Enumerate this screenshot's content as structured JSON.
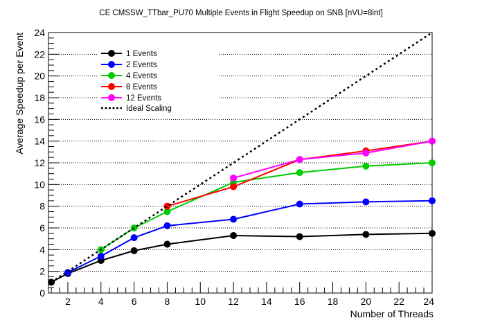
{
  "chart_data": {
    "type": "line",
    "title": "CE CMSSW_TTbar_PU70 Multiple Events in Flight Speedup on SNB [nVU=8int]",
    "xlabel": "Number of Threads",
    "ylabel": "Average Speedup per Event",
    "xlim": [
      0.83,
      24
    ],
    "ylim": [
      0,
      24
    ],
    "x_ticks": [
      2,
      4,
      6,
      8,
      10,
      12,
      14,
      16,
      18,
      20,
      22,
      24
    ],
    "y_ticks": [
      0,
      2,
      4,
      6,
      8,
      10,
      12,
      14,
      16,
      18,
      20,
      22,
      24
    ],
    "grid": "horizontal dotted",
    "legend_position": "top-left",
    "series": [
      {
        "name": "1 Events",
        "color": "#000000",
        "marker": "circle",
        "x": [
          1,
          2,
          4,
          6,
          8,
          12,
          16,
          20,
          24
        ],
        "y": [
          1.0,
          1.8,
          3.0,
          3.9,
          4.5,
          5.3,
          5.2,
          5.4,
          5.5
        ]
      },
      {
        "name": "2 Events",
        "color": "#0000ff",
        "marker": "circle",
        "x": [
          2,
          4,
          6,
          8,
          12,
          16,
          20,
          24
        ],
        "y": [
          1.9,
          3.4,
          5.1,
          6.2,
          6.8,
          8.2,
          8.4,
          8.5
        ]
      },
      {
        "name": "4 Events",
        "color": "#00cc00",
        "marker": "circle",
        "x": [
          4,
          6,
          8,
          12,
          16,
          20,
          24
        ],
        "y": [
          4.0,
          6.0,
          7.5,
          10.2,
          11.1,
          11.7,
          12.0
        ]
      },
      {
        "name": "8 Events",
        "color": "#ff0000",
        "marker": "circle",
        "x": [
          8,
          12,
          16,
          20,
          24
        ],
        "y": [
          8.0,
          9.8,
          12.3,
          13.1,
          14.0
        ]
      },
      {
        "name": "12 Events",
        "color": "#ff00ff",
        "marker": "circle",
        "x": [
          12,
          16,
          20,
          24
        ],
        "y": [
          10.6,
          12.3,
          12.9,
          14.0
        ]
      },
      {
        "name": "Ideal Scaling",
        "color": "#000000",
        "marker": "none",
        "style": "dashed",
        "x": [
          1,
          24
        ],
        "y": [
          1,
          24
        ]
      }
    ]
  }
}
